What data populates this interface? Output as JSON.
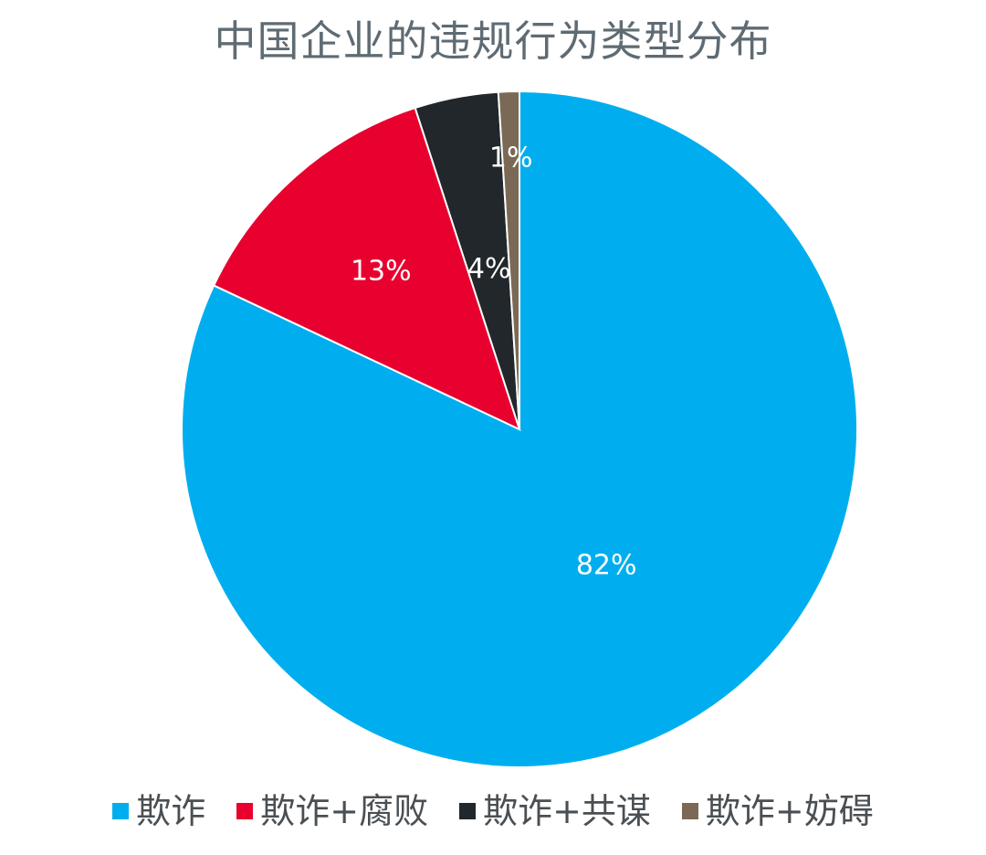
{
  "chart_data": {
    "type": "pie",
    "title": "中国企业的违规行为类型分布",
    "start_angle_deg": 0,
    "direction": "clockwise",
    "legend_position": "bottom",
    "slices": [
      {
        "name": "欺诈",
        "value": 82,
        "label": "82%",
        "color": "#00aeef"
      },
      {
        "name": "欺诈+腐败",
        "value": 13,
        "label": "13%",
        "color": "#e8002f"
      },
      {
        "name": "欺诈+共谋",
        "value": 4,
        "label": "4%",
        "color": "#22272b"
      },
      {
        "name": "欺诈+妨碍",
        "value": 1,
        "label": "1%",
        "color": "#7a6a55"
      }
    ]
  }
}
